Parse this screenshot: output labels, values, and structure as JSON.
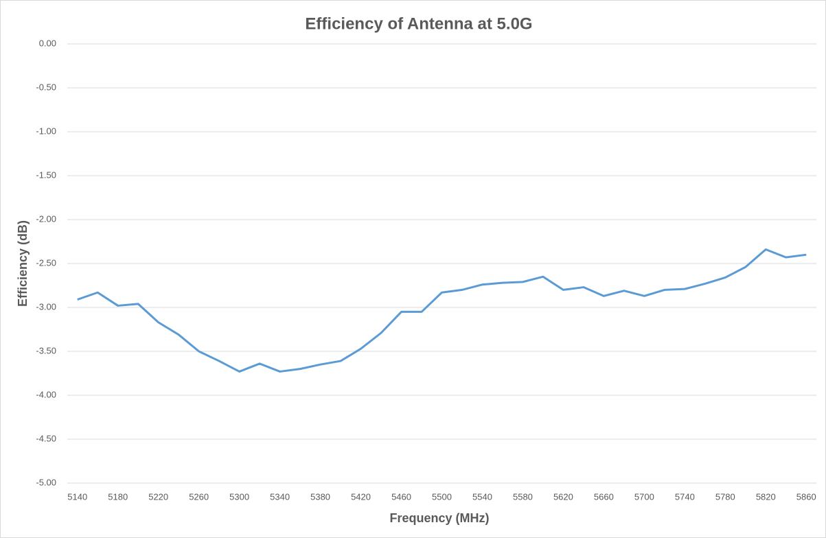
{
  "chart_data": {
    "type": "line",
    "title": "Efficiency of Antenna at 5.0G",
    "x_label": "Frequency (MHz)",
    "y_label": "Efficiency (dB)",
    "x": [
      5140,
      5160,
      5180,
      5200,
      5220,
      5240,
      5260,
      5280,
      5300,
      5320,
      5340,
      5360,
      5380,
      5400,
      5420,
      5440,
      5460,
      5480,
      5500,
      5520,
      5540,
      5560,
      5580,
      5600,
      5620,
      5640,
      5660,
      5680,
      5700,
      5720,
      5740,
      5760,
      5780,
      5800,
      5820,
      5840,
      5860
    ],
    "series": [
      {
        "name": "Efficiency",
        "color": "#5b9bd5",
        "values": [
          -2.91,
          -2.83,
          -2.98,
          -2.96,
          -3.17,
          -3.31,
          -3.5,
          -3.61,
          -3.73,
          -3.64,
          -3.73,
          -3.7,
          -3.65,
          -3.61,
          -3.47,
          -3.29,
          -3.05,
          -3.05,
          -2.83,
          -2.8,
          -2.74,
          -2.72,
          -2.71,
          -2.65,
          -2.8,
          -2.77,
          -2.87,
          -2.81,
          -2.87,
          -2.8,
          -2.79,
          -2.73,
          -2.66,
          -2.54,
          -2.34,
          -2.43,
          -2.4
        ]
      }
    ],
    "xlim": [
      5130,
      5870
    ],
    "xticks": [
      5140,
      5180,
      5220,
      5260,
      5300,
      5340,
      5380,
      5420,
      5460,
      5500,
      5540,
      5580,
      5620,
      5660,
      5700,
      5740,
      5780,
      5820,
      5860
    ],
    "ylim": [
      -5,
      0
    ],
    "yticks": [
      {
        "value": 0,
        "label": "0.00"
      },
      {
        "value": -0.5,
        "label": "-0.50"
      },
      {
        "value": -1,
        "label": "-1.00"
      },
      {
        "value": -1.5,
        "label": "-1.50"
      },
      {
        "value": -2,
        "label": "-2.00"
      },
      {
        "value": -2.5,
        "label": "-2.50"
      },
      {
        "value": -3,
        "label": "-3.00"
      },
      {
        "value": -3.5,
        "label": "-3.50"
      },
      {
        "value": -4,
        "label": "-4.00"
      },
      {
        "value": -4.5,
        "label": "-4.50"
      },
      {
        "value": -5,
        "label": "-5.00"
      }
    ],
    "grid": true
  }
}
